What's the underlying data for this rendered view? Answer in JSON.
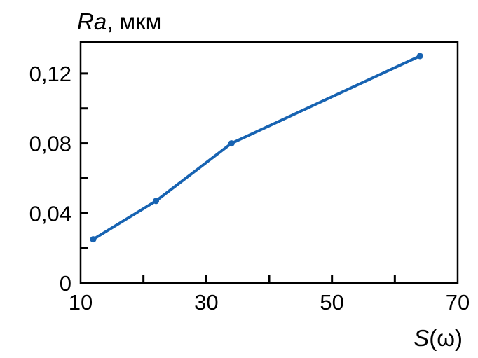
{
  "chart_data": {
    "type": "line",
    "title": {
      "italic": "Ra",
      "rest": ", мкм"
    },
    "xlabel": {
      "italic": "S",
      "rest": "(ω)"
    },
    "x": [
      12,
      22,
      34,
      64
    ],
    "y": [
      0.025,
      0.047,
      0.08,
      0.13
    ],
    "xlim": [
      10,
      70
    ],
    "ylim": [
      0,
      0.138
    ],
    "x_ticks_labeled": [
      10,
      30,
      50,
      70
    ],
    "x_tick_labels": [
      "10",
      "30",
      "50",
      "70"
    ],
    "x_ticks_minor": [
      20,
      30,
      40,
      50,
      60
    ],
    "y_ticks_labeled": [
      0,
      0.04,
      0.08,
      0.12
    ],
    "y_tick_labels": [
      "0",
      "0,04",
      "0,08",
      "0,12"
    ],
    "y_ticks_minor": [
      0.02,
      0.04,
      0.06,
      0.08,
      0.1,
      0.12
    ],
    "grid": false,
    "legend": "none",
    "line_color": "#1763b2",
    "axis_color": "#000000",
    "marker": "circle"
  }
}
